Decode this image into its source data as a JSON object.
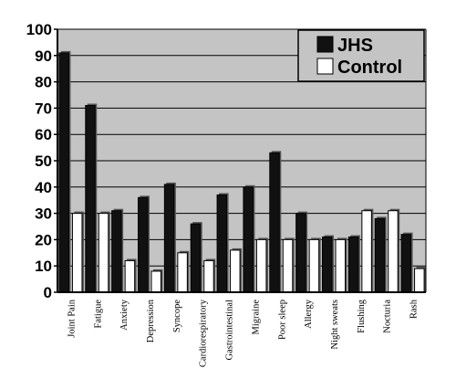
{
  "chart_data": {
    "type": "bar",
    "categories": [
      "Joint Pain",
      "Fatigue",
      "Anxiety",
      "Depression",
      "Syncope",
      "Cardiorespiratory",
      "Gastrointestinal",
      "Migraine",
      "Poor sleep",
      "Allergy",
      "Night sweats",
      "Flushing",
      "Nocturia",
      "Rash"
    ],
    "series": [
      {
        "name": "JHS",
        "values": [
          91,
          71,
          31,
          36,
          41,
          26,
          37,
          40,
          53,
          30,
          21,
          21,
          28,
          22
        ]
      },
      {
        "name": "Control",
        "values": [
          30,
          30,
          12,
          8,
          15,
          12,
          16,
          20,
          20,
          20,
          20,
          31,
          31,
          9
        ]
      }
    ],
    "ylim": [
      0,
      100
    ],
    "yticks": [
      "0",
      "10",
      "20",
      "30",
      "40",
      "50",
      "60",
      "70",
      "80",
      "90",
      "100"
    ],
    "grid": true,
    "legend_position": "top-right",
    "colors": {
      "plot_background": "#c4c4c4",
      "jhs": "#111111",
      "control": "#ffffff",
      "gridline": "#000000"
    }
  }
}
